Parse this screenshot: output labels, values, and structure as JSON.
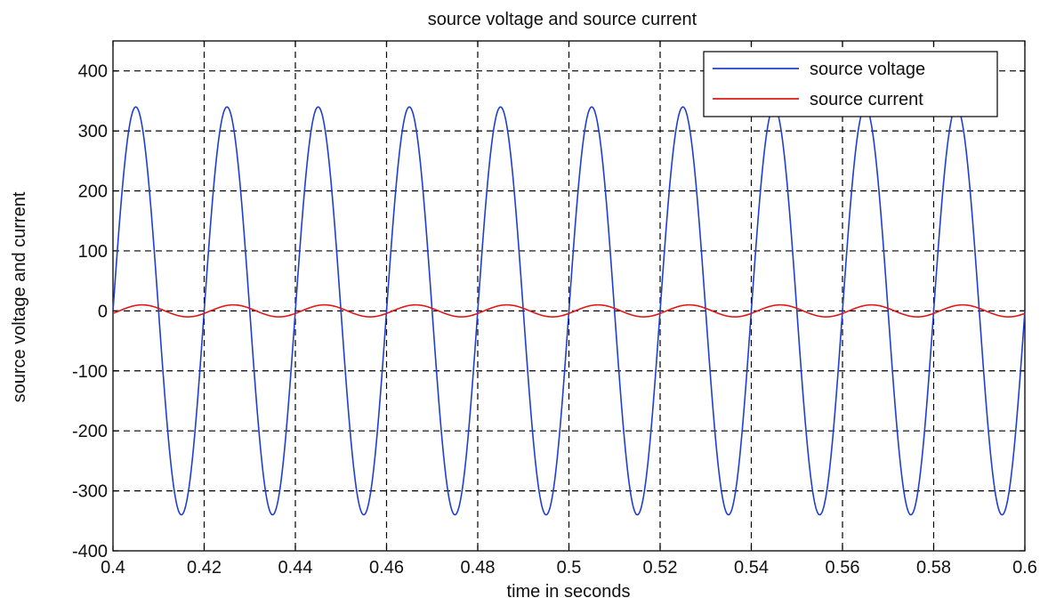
{
  "chart_data": {
    "type": "line",
    "title": "source voltage and source current",
    "xlabel": "time in seconds",
    "ylabel": "source voltage and current",
    "xlim": [
      0.4,
      0.6
    ],
    "ylim": [
      -400,
      450
    ],
    "x_ticks": [
      0.4,
      0.42,
      0.44,
      0.46,
      0.48,
      0.5,
      0.52,
      0.54,
      0.56,
      0.58,
      0.6
    ],
    "x_tick_labels": [
      "0.4",
      "0.42",
      "0.44",
      "0.46",
      "0.48",
      "0.5",
      "0.52",
      "0.54",
      "0.56",
      "0.58",
      "0.6"
    ],
    "y_ticks": [
      -400,
      -300,
      -200,
      -100,
      0,
      100,
      200,
      300,
      400
    ],
    "y_tick_labels": [
      "-400",
      "-300",
      "-200",
      "-100",
      "0",
      "100",
      "200",
      "300",
      "400"
    ],
    "grid": true,
    "legend_position": "top-right",
    "series": [
      {
        "name": "source voltage",
        "color": "#1f3fd0",
        "waveform": "sine",
        "amplitude": 340,
        "frequency_hz": 50,
        "phase_deg": 0,
        "x": [
          0.4,
          0.405,
          0.41,
          0.415,
          0.42,
          0.425,
          0.43,
          0.435,
          0.44,
          0.445,
          0.45,
          0.455,
          0.46,
          0.465,
          0.47,
          0.475,
          0.48,
          0.485,
          0.49,
          0.495,
          0.5,
          0.505,
          0.51,
          0.515,
          0.52,
          0.525,
          0.53,
          0.535,
          0.54,
          0.545,
          0.55,
          0.555,
          0.56,
          0.565,
          0.57,
          0.575,
          0.58,
          0.585,
          0.59,
          0.595,
          0.6
        ],
        "y": [
          0,
          340,
          0,
          -340,
          0,
          340,
          0,
          -340,
          0,
          340,
          0,
          -340,
          0,
          340,
          0,
          -340,
          0,
          340,
          0,
          -340,
          0,
          340,
          0,
          -340,
          0,
          340,
          0,
          -340,
          0,
          340,
          0,
          -340,
          0,
          340,
          0,
          -340,
          0,
          340,
          0,
          -340,
          0
        ]
      },
      {
        "name": "source current",
        "color": "#e01818",
        "waveform": "sine",
        "amplitude": 10,
        "frequency_hz": 50,
        "phase_deg": -25,
        "x": [
          0.4,
          0.405,
          0.41,
          0.415,
          0.42,
          0.425,
          0.43,
          0.435,
          0.44,
          0.445,
          0.45,
          0.455,
          0.46,
          0.465,
          0.47,
          0.475,
          0.48,
          0.485,
          0.49,
          0.495,
          0.5,
          0.505,
          0.51,
          0.515,
          0.52,
          0.525,
          0.53,
          0.535,
          0.54,
          0.545,
          0.55,
          0.555,
          0.56,
          0.565,
          0.57,
          0.575,
          0.58,
          0.585,
          0.59,
          0.595,
          0.6
        ],
        "y": [
          -4,
          9,
          4,
          -9,
          -4,
          9,
          4,
          -9,
          -4,
          9,
          4,
          -9,
          -4,
          9,
          4,
          -9,
          -4,
          9,
          4,
          -9,
          -4,
          9,
          4,
          -9,
          -4,
          9,
          4,
          -9,
          -4,
          9,
          4,
          -9,
          -4,
          9,
          4,
          -9,
          -4,
          9,
          4,
          -9,
          -4
        ]
      }
    ]
  }
}
